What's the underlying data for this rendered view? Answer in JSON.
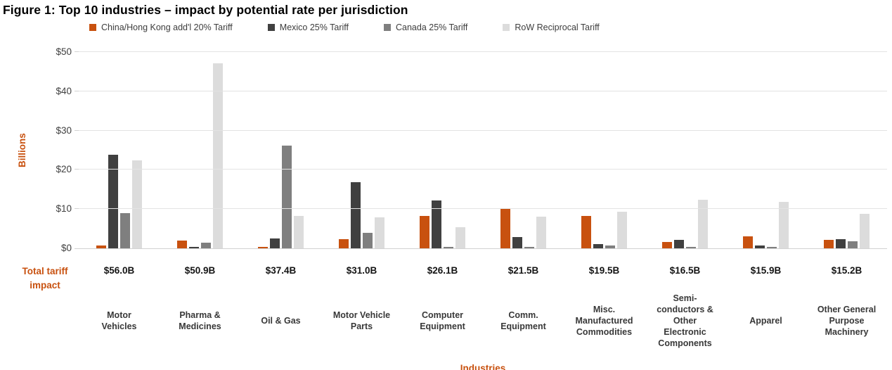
{
  "figure": {
    "title": "Figure 1: Top 10 industries – impact by potential rate per jurisdiction"
  },
  "colors": {
    "accent_orange": "#C8510F",
    "dark_gray": "#404040",
    "mid_gray": "#7F7F7F",
    "light_gray": "#DCDCDC",
    "gridline": "#E3E3E3"
  },
  "chart_data": {
    "type": "bar",
    "title": "Figure 1: Top 10 industries – impact by potential rate per jurisdiction",
    "ylabel": "Billions",
    "xlabel": "Industries",
    "total_row_label": "Total tariff impact",
    "ylim": [
      0,
      50
    ],
    "y_ticks": [
      "$0",
      "$10",
      "$20",
      "$30",
      "$40",
      "$50"
    ],
    "grid": true,
    "legend_position": "top",
    "categories": [
      "Motor Vehicles",
      "Pharma & Medicines",
      "Oil & Gas",
      "Motor Vehicle Parts",
      "Computer Equipment",
      "Comm. Equipment",
      "Misc. Manufactured Commodities",
      "Semi-conductors & Other Electronic Components",
      "Apparel",
      "Other General Purpose Machinery"
    ],
    "category_display": [
      "Motor\nVehicles",
      "Pharma &\nMedicines",
      "Oil & Gas",
      "Motor Vehicle\nParts",
      "Computer\nEquipment",
      "Comm.\nEquipment",
      "Misc.\nManufactured\nCommodities",
      "Semi-\nconductors &\nOther\nElectronic\nComponents",
      "Apparel",
      "Other General\nPurpose\nMachinery"
    ],
    "series": [
      {
        "name": "China/Hong Kong add'l 20% Tariff",
        "color": "#C8510F",
        "values": [
          0.7,
          2.0,
          0.3,
          2.4,
          8.2,
          10.3,
          8.3,
          1.6,
          3.0,
          2.2
        ]
      },
      {
        "name": "Mexico 25% Tariff",
        "color": "#404040",
        "values": [
          23.8,
          0.3,
          2.6,
          16.8,
          12.2,
          2.8,
          1.1,
          2.1,
          0.7,
          2.4
        ]
      },
      {
        "name": "Canada 25% Tariff",
        "color": "#7F7F7F",
        "values": [
          9.0,
          1.5,
          26.2,
          3.9,
          0.4,
          0.4,
          0.7,
          0.4,
          0.3,
          1.8
        ]
      },
      {
        "name": "RoW Reciprocal Tariff",
        "color": "#DCDCDC",
        "values": [
          22.5,
          47.1,
          8.3,
          7.9,
          5.3,
          8.0,
          9.4,
          12.4,
          11.9,
          8.8
        ]
      }
    ],
    "totals": [
      "$56.0B",
      "$50.9B",
      "$37.4B",
      "$31.0B",
      "$26.1B",
      "$21.5B",
      "$19.5B",
      "$16.5B",
      "$15.9B",
      "$15.2B"
    ]
  }
}
